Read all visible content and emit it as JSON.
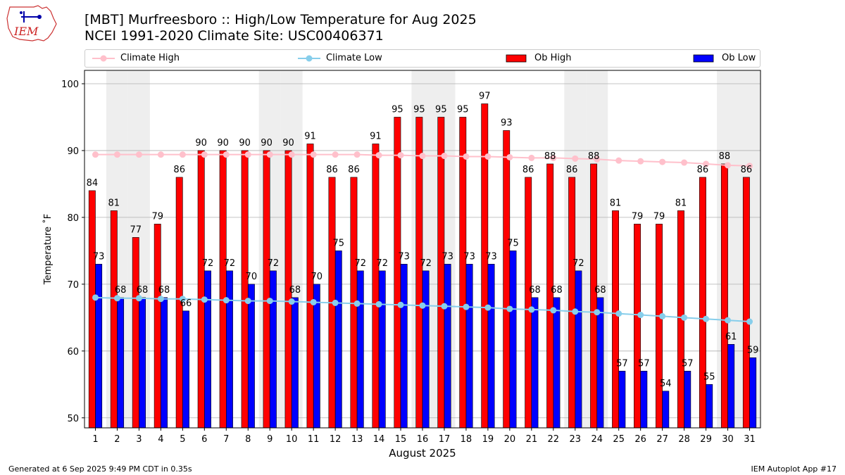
{
  "header": {
    "title_line1": "[MBT] Murfreesboro :: High/Low Temperature for Aug 2025",
    "title_line2": "NCEI 1991-2020 Climate Site: USC00406371",
    "logo_text": "IEM"
  },
  "footer": {
    "generated": "Generated at 6 Sep 2025 9:49 PM CDT in 0.35s",
    "app": "IEM Autoplot App #17"
  },
  "colors": {
    "ob_high": "#ff0000",
    "ob_low": "#0000ff",
    "climate_high": "#ffc0cb",
    "climate_low": "#87ceeb",
    "weekend_band": "#eeeeee",
    "grid": "#b0b0b0"
  },
  "chart_data": {
    "type": "bar",
    "xlabel": "August 2025",
    "ylabel": "Temperature ˚F",
    "ylim": [
      48.5,
      102
    ],
    "yticks": [
      50,
      60,
      70,
      80,
      90,
      100
    ],
    "grid": "horizontal",
    "legend_position": "top",
    "categories": [
      "1",
      "2",
      "3",
      "4",
      "5",
      "6",
      "7",
      "8",
      "9",
      "10",
      "11",
      "12",
      "13",
      "14",
      "15",
      "16",
      "17",
      "18",
      "19",
      "20",
      "21",
      "22",
      "23",
      "24",
      "25",
      "26",
      "27",
      "28",
      "29",
      "30",
      "31"
    ],
    "shaded_days": [
      2,
      3,
      9,
      10,
      16,
      17,
      23,
      24,
      30,
      31
    ],
    "series": [
      {
        "name": "Climate High",
        "kind": "line",
        "values": [
          89.4,
          89.4,
          89.4,
          89.4,
          89.4,
          89.4,
          89.4,
          89.4,
          89.4,
          89.4,
          89.4,
          89.4,
          89.4,
          89.3,
          89.3,
          89.2,
          89.2,
          89.1,
          89.1,
          89.0,
          88.9,
          88.9,
          88.8,
          88.7,
          88.5,
          88.4,
          88.3,
          88.2,
          88.0,
          87.8,
          87.7
        ]
      },
      {
        "name": "Climate Low",
        "kind": "line",
        "values": [
          68.0,
          67.9,
          67.9,
          67.8,
          67.8,
          67.7,
          67.6,
          67.5,
          67.5,
          67.4,
          67.3,
          67.2,
          67.1,
          67.0,
          66.9,
          66.8,
          66.7,
          66.6,
          66.5,
          66.3,
          66.2,
          66.1,
          65.9,
          65.8,
          65.6,
          65.4,
          65.2,
          65.0,
          64.8,
          64.6,
          64.4
        ]
      },
      {
        "name": "Ob High",
        "kind": "bar",
        "values": [
          84,
          81,
          77,
          79,
          86,
          90,
          90,
          90,
          90,
          90,
          91,
          86,
          86,
          91,
          95,
          95,
          95,
          95,
          97,
          93,
          86,
          88,
          86,
          88,
          81,
          79,
          79,
          81,
          86,
          88,
          86
        ]
      },
      {
        "name": "Ob Low",
        "kind": "bar",
        "values": [
          73,
          68,
          68,
          68,
          66,
          72,
          72,
          70,
          72,
          68,
          70,
          75,
          72,
          72,
          73,
          72,
          73,
          73,
          73,
          75,
          68,
          68,
          72,
          68,
          57,
          57,
          54,
          57,
          55,
          61,
          59
        ]
      }
    ]
  }
}
